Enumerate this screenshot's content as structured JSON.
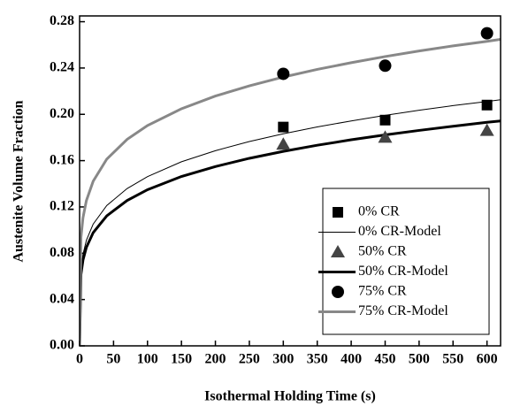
{
  "chart_data": {
    "type": "scatter-line",
    "xlabel": "Isothermal Holding Time (s)",
    "ylabel": "Austenite Volume Fraction",
    "xlim": [
      0,
      620
    ],
    "ylim": [
      0,
      0.285
    ],
    "xticks": [
      0,
      50,
      100,
      150,
      200,
      250,
      300,
      350,
      400,
      450,
      500,
      550,
      600
    ],
    "yticks": [
      {
        "value": 0,
        "label": "0.00"
      },
      {
        "value": 0.04,
        "label": "0.04"
      },
      {
        "value": 0.08,
        "label": "0.08"
      },
      {
        "value": 0.12,
        "label": "0.12"
      },
      {
        "value": 0.16,
        "label": "0.16"
      },
      {
        "value": 0.2,
        "label": "0.20"
      },
      {
        "value": 0.24,
        "label": "0.24"
      },
      {
        "value": 0.28,
        "label": "0.28"
      }
    ],
    "legend": "lower right",
    "series": [
      {
        "name": "0% CR",
        "kind": "marker",
        "marker": "square",
        "color": "#000000",
        "x": [
          300,
          450,
          600
        ],
        "values": [
          0.189,
          0.195,
          0.208
        ]
      },
      {
        "name": "0% CR-Model",
        "kind": "line",
        "width": 1,
        "color": "#000000",
        "x": [
          0,
          2,
          5,
          10,
          20,
          40,
          70,
          100,
          150,
          200,
          250,
          300,
          350,
          400,
          450,
          500,
          550,
          600,
          620
        ],
        "values": [
          0,
          0.0656,
          0.0791,
          0.0912,
          0.1052,
          0.1212,
          0.1359,
          0.1462,
          0.159,
          0.1686,
          0.1765,
          0.1832,
          0.1891,
          0.1943,
          0.1991,
          0.2035,
          0.2075,
          0.2111,
          0.2126
        ]
      },
      {
        "name": "50% CR",
        "kind": "marker",
        "marker": "triangle",
        "color": "#444444",
        "x": [
          300,
          450,
          600
        ],
        "values": [
          0.174,
          0.18,
          0.186
        ]
      },
      {
        "name": "50% CR-Model",
        "kind": "line",
        "width": 3,
        "color": "#000000",
        "x": [
          0,
          2,
          5,
          10,
          20,
          40,
          70,
          100,
          150,
          200,
          250,
          300,
          350,
          400,
          450,
          500,
          550,
          600,
          620
        ],
        "values": [
          0,
          0.0617,
          0.0741,
          0.0851,
          0.0978,
          0.1123,
          0.1256,
          0.1349,
          0.1463,
          0.1549,
          0.162,
          0.168,
          0.1733,
          0.178,
          0.1822,
          0.1861,
          0.1897,
          0.1931,
          0.1943
        ]
      },
      {
        "name": "75% CR",
        "kind": "marker",
        "marker": "circle",
        "color": "#000000",
        "x": [
          300,
          450,
          600
        ],
        "values": [
          0.235,
          0.242,
          0.27
        ]
      },
      {
        "name": "75% CR-Model",
        "kind": "line",
        "width": 3,
        "color": "#888888",
        "x": [
          0,
          2,
          5,
          10,
          20,
          40,
          70,
          100,
          150,
          200,
          250,
          300,
          350,
          400,
          450,
          500,
          550,
          600,
          620
        ],
        "values": [
          0,
          0.0938,
          0.1107,
          0.1255,
          0.1422,
          0.1613,
          0.1784,
          0.1903,
          0.2048,
          0.2158,
          0.2246,
          0.2322,
          0.2388,
          0.2446,
          0.2499,
          0.2547,
          0.2591,
          0.263,
          0.2648
        ]
      }
    ]
  }
}
